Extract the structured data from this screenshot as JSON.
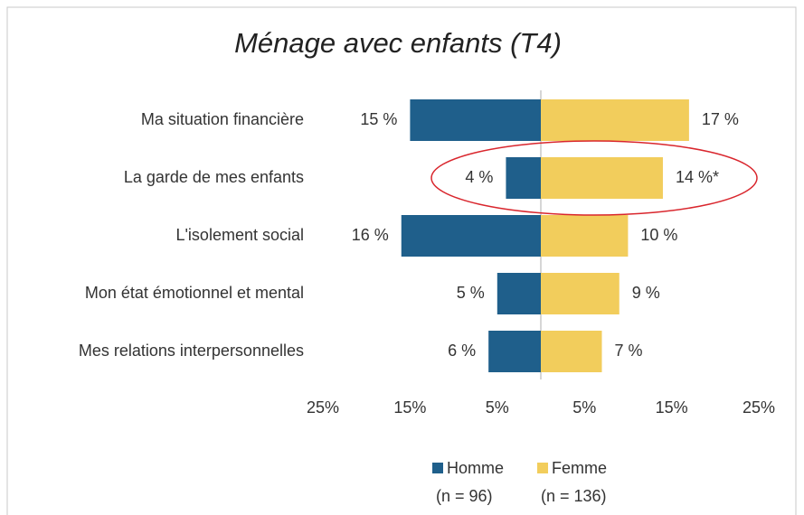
{
  "chart_data": {
    "type": "diverging-bar",
    "title": "Ménage avec enfants (T4)",
    "categories": [
      "Ma situation financière",
      "La garde de mes enfants",
      "L'isolement social",
      "Mon état émotionnel et mental",
      "Mes relations interpersonnelles"
    ],
    "series": [
      {
        "name": "Homme",
        "note": "(n = 96)",
        "color": "#1f5f8b",
        "side": "left",
        "values": [
          15,
          4,
          16,
          5,
          6
        ],
        "value_labels": [
          "15 %",
          "4 %",
          "16 %",
          "5 %",
          "6 %"
        ]
      },
      {
        "name": "Femme",
        "note": "(n = 136)",
        "color": "#f2cd5c",
        "side": "right",
        "values": [
          17,
          14,
          10,
          9,
          7
        ],
        "value_labels": [
          "17 %",
          "14 %*",
          "10 %",
          "9 %",
          "7 %"
        ]
      }
    ],
    "xlim": [
      0,
      25
    ],
    "xticks_left": [
      {
        "value": 25,
        "label": "25%"
      },
      {
        "value": 15,
        "label": "15%"
      },
      {
        "value": 5,
        "label": "5%"
      }
    ],
    "xticks_right": [
      {
        "value": 5,
        "label": "5%"
      },
      {
        "value": 15,
        "label": "15%"
      },
      {
        "value": 25,
        "label": "25%"
      }
    ]
  }
}
